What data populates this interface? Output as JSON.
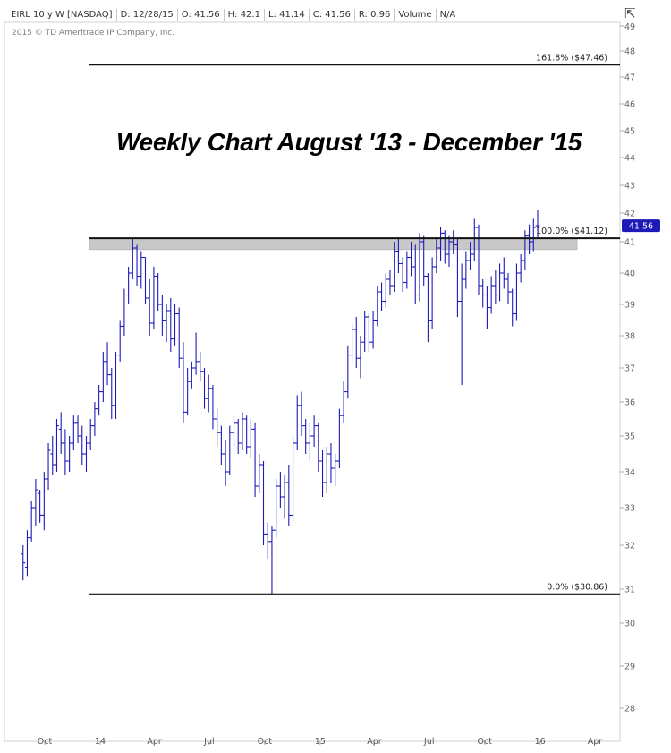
{
  "header": {
    "symbol": "EIRL 10 y W [NASDAQ]",
    "date": "D: 12/28/15",
    "open": "O: 41.56",
    "high": "H: 42.1",
    "low": "L: 41.14",
    "close": "C: 41.56",
    "range": "R: 0.96",
    "volume_label": "Volume",
    "volume_value": "N/A",
    "copyright": "2015 © TD Ameritrade IP Company, Inc.",
    "corner_icon": "compare-arrows-icon"
  },
  "chart_data": {
    "type": "ohlc",
    "title": "Weekly Chart August '13 - December '15",
    "y_ticks": [
      "28",
      "29",
      "30",
      "31",
      "32",
      "33",
      "34",
      "35",
      "36",
      "37",
      "38",
      "39",
      "40",
      "41",
      "42",
      "43",
      "44",
      "45",
      "46",
      "47",
      "48",
      "49"
    ],
    "ylim": [
      27.6,
      49.1
    ],
    "x_tick_labels": [
      "Oct",
      "14",
      "Apr",
      "Jul",
      "Oct",
      "15",
      "Apr",
      "Jul",
      "Oct",
      "16",
      "Apr"
    ],
    "x_tick_dates": [
      "2013-10-01",
      "2014-01-01",
      "2014-04-01",
      "2014-07-01",
      "2014-10-01",
      "2015-01-01",
      "2015-04-01",
      "2015-07-01",
      "2015-10-01",
      "2016-01-01",
      "2016-04-01"
    ],
    "last_price": "41.56",
    "fib_levels": [
      {
        "label": "161.8% ($47.46)",
        "value": 47.46
      },
      {
        "label": "100.0% ($41.12)",
        "value": 41.12
      },
      {
        "label": "0.0% ($30.86)",
        "value": 30.86
      }
    ],
    "resistance_zone": [
      40.75,
      41.12
    ],
    "series": [
      {
        "x": "2013-08-26",
        "open": 31.8,
        "high": 32.0,
        "low": 31.2,
        "close": 31.6
      },
      {
        "x": "2013-09-02",
        "open": 31.5,
        "high": 32.4,
        "low": 31.3,
        "close": 32.2
      },
      {
        "x": "2013-09-09",
        "open": 32.2,
        "high": 33.2,
        "low": 32.1,
        "close": 33.0
      },
      {
        "x": "2013-09-16",
        "open": 33.0,
        "high": 33.8,
        "low": 32.5,
        "close": 33.5
      },
      {
        "x": "2013-09-23",
        "open": 33.4,
        "high": 33.5,
        "low": 32.6,
        "close": 32.8
      },
      {
        "x": "2013-09-30",
        "open": 32.8,
        "high": 34.0,
        "low": 32.4,
        "close": 33.8
      },
      {
        "x": "2013-10-07",
        "open": 33.8,
        "high": 34.8,
        "low": 33.5,
        "close": 34.6
      },
      {
        "x": "2013-10-14",
        "open": 34.5,
        "high": 35.0,
        "low": 33.9,
        "close": 34.2
      },
      {
        "x": "2013-10-21",
        "open": 34.2,
        "high": 35.5,
        "low": 34.0,
        "close": 35.3
      },
      {
        "x": "2013-10-28",
        "open": 35.2,
        "high": 35.7,
        "low": 34.5,
        "close": 34.8
      },
      {
        "x": "2013-11-04",
        "open": 34.8,
        "high": 35.2,
        "low": 33.9,
        "close": 34.3
      },
      {
        "x": "2013-11-11",
        "open": 34.3,
        "high": 35.0,
        "low": 34.0,
        "close": 34.8
      },
      {
        "x": "2013-11-18",
        "open": 34.8,
        "high": 35.6,
        "low": 34.6,
        "close": 35.4
      },
      {
        "x": "2013-11-25",
        "open": 35.4,
        "high": 35.6,
        "low": 34.8,
        "close": 35.0
      },
      {
        "x": "2013-12-02",
        "open": 35.0,
        "high": 35.3,
        "low": 34.2,
        "close": 34.5
      },
      {
        "x": "2013-12-09",
        "open": 34.5,
        "high": 35.0,
        "low": 34.0,
        "close": 34.8
      },
      {
        "x": "2013-12-16",
        "open": 34.8,
        "high": 35.5,
        "low": 34.6,
        "close": 35.3
      },
      {
        "x": "2013-12-23",
        "open": 35.3,
        "high": 36.0,
        "low": 35.0,
        "close": 35.8
      },
      {
        "x": "2013-12-30",
        "open": 35.8,
        "high": 36.5,
        "low": 35.6,
        "close": 36.3
      },
      {
        "x": "2014-01-06",
        "open": 36.3,
        "high": 37.5,
        "low": 36.0,
        "close": 37.2
      },
      {
        "x": "2014-01-13",
        "open": 37.2,
        "high": 37.8,
        "low": 36.5,
        "close": 36.8
      },
      {
        "x": "2014-01-20",
        "open": 36.8,
        "high": 37.0,
        "low": 35.5,
        "close": 35.9
      },
      {
        "x": "2014-01-27",
        "open": 35.9,
        "high": 37.5,
        "low": 35.5,
        "close": 37.4
      },
      {
        "x": "2014-02-03",
        "open": 37.4,
        "high": 38.5,
        "low": 37.2,
        "close": 38.3
      },
      {
        "x": "2014-02-10",
        "open": 38.3,
        "high": 39.5,
        "low": 38.0,
        "close": 39.3
      },
      {
        "x": "2014-02-17",
        "open": 39.3,
        "high": 40.2,
        "low": 39.0,
        "close": 40.0
      },
      {
        "x": "2014-02-24",
        "open": 40.0,
        "high": 41.1,
        "low": 39.8,
        "close": 40.8
      },
      {
        "x": "2014-03-03",
        "open": 40.8,
        "high": 40.9,
        "low": 39.6,
        "close": 39.9
      },
      {
        "x": "2014-03-10",
        "open": 39.9,
        "high": 40.7,
        "low": 39.5,
        "close": 40.5
      },
      {
        "x": "2014-03-17",
        "open": 40.5,
        "high": 40.5,
        "low": 39.0,
        "close": 39.2
      },
      {
        "x": "2014-03-24",
        "open": 39.2,
        "high": 39.8,
        "low": 38.0,
        "close": 38.4
      },
      {
        "x": "2014-03-31",
        "open": 38.4,
        "high": 40.2,
        "low": 38.2,
        "close": 39.9
      },
      {
        "x": "2014-04-07",
        "open": 39.9,
        "high": 40.0,
        "low": 38.8,
        "close": 39.0
      },
      {
        "x": "2014-04-14",
        "open": 39.0,
        "high": 39.3,
        "low": 38.0,
        "close": 38.5
      },
      {
        "x": "2014-04-21",
        "open": 38.5,
        "high": 39.0,
        "low": 37.8,
        "close": 38.8
      },
      {
        "x": "2014-04-28",
        "open": 38.8,
        "high": 39.2,
        "low": 37.5,
        "close": 37.9
      },
      {
        "x": "2014-05-05",
        "open": 37.9,
        "high": 39.0,
        "low": 37.7,
        "close": 38.7
      },
      {
        "x": "2014-05-12",
        "open": 38.7,
        "high": 38.9,
        "low": 37.0,
        "close": 37.3
      },
      {
        "x": "2014-05-19",
        "open": 37.3,
        "high": 37.8,
        "low": 35.4,
        "close": 35.7
      },
      {
        "x": "2014-05-26",
        "open": 35.7,
        "high": 37.0,
        "low": 35.6,
        "close": 36.6
      },
      {
        "x": "2014-06-02",
        "open": 36.6,
        "high": 37.2,
        "low": 36.4,
        "close": 37.0
      },
      {
        "x": "2014-06-09",
        "open": 37.0,
        "high": 38.1,
        "low": 36.8,
        "close": 37.2
      },
      {
        "x": "2014-06-16",
        "open": 37.2,
        "high": 37.5,
        "low": 36.6,
        "close": 36.9
      },
      {
        "x": "2014-06-23",
        "open": 36.9,
        "high": 37.0,
        "low": 35.8,
        "close": 36.1
      },
      {
        "x": "2014-06-30",
        "open": 36.1,
        "high": 36.8,
        "low": 35.7,
        "close": 36.4
      },
      {
        "x": "2014-07-07",
        "open": 36.4,
        "high": 36.5,
        "low": 35.2,
        "close": 35.5
      },
      {
        "x": "2014-07-14",
        "open": 35.5,
        "high": 35.8,
        "low": 34.7,
        "close": 35.1
      },
      {
        "x": "2014-07-21",
        "open": 35.1,
        "high": 35.3,
        "low": 34.2,
        "close": 34.5
      },
      {
        "x": "2014-07-28",
        "open": 34.5,
        "high": 34.9,
        "low": 33.6,
        "close": 34.0
      },
      {
        "x": "2014-08-04",
        "open": 34.0,
        "high": 35.3,
        "low": 33.9,
        "close": 35.1
      },
      {
        "x": "2014-08-11",
        "open": 35.1,
        "high": 35.6,
        "low": 34.7,
        "close": 35.4
      },
      {
        "x": "2014-08-18",
        "open": 35.4,
        "high": 35.5,
        "low": 34.5,
        "close": 34.8
      },
      {
        "x": "2014-08-25",
        "open": 34.8,
        "high": 35.7,
        "low": 34.6,
        "close": 35.5
      },
      {
        "x": "2014-09-01",
        "open": 35.5,
        "high": 35.6,
        "low": 34.5,
        "close": 34.7
      },
      {
        "x": "2014-09-08",
        "open": 34.7,
        "high": 35.5,
        "low": 34.4,
        "close": 35.2
      },
      {
        "x": "2014-09-15",
        "open": 35.2,
        "high": 35.4,
        "low": 33.3,
        "close": 33.6
      },
      {
        "x": "2014-09-22",
        "open": 33.6,
        "high": 34.5,
        "low": 33.4,
        "close": 34.2
      },
      {
        "x": "2014-09-29",
        "open": 34.2,
        "high": 34.3,
        "low": 32.0,
        "close": 32.3
      },
      {
        "x": "2014-10-06",
        "open": 32.3,
        "high": 32.6,
        "low": 31.7,
        "close": 32.1
      },
      {
        "x": "2014-10-13",
        "open": 32.1,
        "high": 32.5,
        "low": 30.86,
        "close": 32.4
      },
      {
        "x": "2014-10-20",
        "open": 32.4,
        "high": 33.8,
        "low": 32.2,
        "close": 33.6
      },
      {
        "x": "2014-10-27",
        "open": 33.6,
        "high": 34.0,
        "low": 33.0,
        "close": 33.3
      },
      {
        "x": "2014-11-03",
        "open": 33.3,
        "high": 33.9,
        "low": 32.7,
        "close": 33.7
      },
      {
        "x": "2014-11-10",
        "open": 33.7,
        "high": 34.2,
        "low": 32.5,
        "close": 32.8
      },
      {
        "x": "2014-11-17",
        "open": 32.8,
        "high": 35.0,
        "low": 32.6,
        "close": 34.8
      },
      {
        "x": "2014-11-24",
        "open": 34.8,
        "high": 36.2,
        "low": 34.6,
        "close": 35.9
      },
      {
        "x": "2014-12-01",
        "open": 35.9,
        "high": 36.3,
        "low": 35.0,
        "close": 35.3
      },
      {
        "x": "2014-12-08",
        "open": 35.3,
        "high": 35.5,
        "low": 34.5,
        "close": 34.8
      },
      {
        "x": "2014-12-15",
        "open": 34.8,
        "high": 35.4,
        "low": 34.3,
        "close": 35.0
      },
      {
        "x": "2014-12-22",
        "open": 35.0,
        "high": 35.6,
        "low": 34.7,
        "close": 35.3
      },
      {
        "x": "2014-12-29",
        "open": 35.3,
        "high": 35.4,
        "low": 34.0,
        "close": 34.3
      },
      {
        "x": "2015-01-05",
        "open": 34.3,
        "high": 34.6,
        "low": 33.3,
        "close": 33.7
      },
      {
        "x": "2015-01-12",
        "open": 33.7,
        "high": 34.7,
        "low": 33.4,
        "close": 34.5
      },
      {
        "x": "2015-01-19",
        "open": 34.5,
        "high": 34.8,
        "low": 33.7,
        "close": 34.1
      },
      {
        "x": "2015-01-26",
        "open": 34.1,
        "high": 34.5,
        "low": 33.6,
        "close": 34.3
      },
      {
        "x": "2015-02-02",
        "open": 34.3,
        "high": 35.8,
        "low": 34.1,
        "close": 35.6
      },
      {
        "x": "2015-02-09",
        "open": 35.6,
        "high": 36.6,
        "low": 35.4,
        "close": 36.3
      },
      {
        "x": "2015-02-16",
        "open": 36.3,
        "high": 37.7,
        "low": 36.1,
        "close": 37.4
      },
      {
        "x": "2015-02-23",
        "open": 37.4,
        "high": 38.4,
        "low": 37.2,
        "close": 38.2
      },
      {
        "x": "2015-03-02",
        "open": 38.2,
        "high": 38.6,
        "low": 37.0,
        "close": 37.3
      },
      {
        "x": "2015-03-09",
        "open": 37.3,
        "high": 38.0,
        "low": 36.7,
        "close": 37.8
      },
      {
        "x": "2015-03-16",
        "open": 37.8,
        "high": 38.8,
        "low": 37.5,
        "close": 38.6
      },
      {
        "x": "2015-03-23",
        "open": 38.6,
        "high": 38.7,
        "low": 37.5,
        "close": 37.8
      },
      {
        "x": "2015-03-30",
        "open": 37.8,
        "high": 38.8,
        "low": 37.6,
        "close": 38.5
      },
      {
        "x": "2015-04-06",
        "open": 38.5,
        "high": 39.6,
        "low": 38.3,
        "close": 39.4
      },
      {
        "x": "2015-04-13",
        "open": 39.4,
        "high": 39.7,
        "low": 38.8,
        "close": 39.1
      },
      {
        "x": "2015-04-20",
        "open": 39.1,
        "high": 40.0,
        "low": 38.9,
        "close": 39.8
      },
      {
        "x": "2015-04-27",
        "open": 39.8,
        "high": 40.1,
        "low": 39.3,
        "close": 39.6
      },
      {
        "x": "2015-05-04",
        "open": 39.6,
        "high": 41.0,
        "low": 39.4,
        "close": 40.7
      },
      {
        "x": "2015-05-11",
        "open": 40.7,
        "high": 41.1,
        "low": 40.0,
        "close": 40.3
      },
      {
        "x": "2015-05-18",
        "open": 40.3,
        "high": 40.5,
        "low": 39.4,
        "close": 39.7
      },
      {
        "x": "2015-05-25",
        "open": 39.7,
        "high": 40.7,
        "low": 39.5,
        "close": 40.5
      },
      {
        "x": "2015-06-01",
        "open": 40.5,
        "high": 41.0,
        "low": 39.9,
        "close": 40.2
      },
      {
        "x": "2015-06-08",
        "open": 40.2,
        "high": 40.9,
        "low": 39.0,
        "close": 39.3
      },
      {
        "x": "2015-06-15",
        "open": 39.3,
        "high": 41.3,
        "low": 39.1,
        "close": 41.0
      },
      {
        "x": "2015-06-22",
        "open": 41.0,
        "high": 41.2,
        "low": 39.6,
        "close": 39.9
      },
      {
        "x": "2015-06-29",
        "open": 39.9,
        "high": 40.0,
        "low": 37.8,
        "close": 38.5
      },
      {
        "x": "2015-07-06",
        "open": 38.5,
        "high": 40.5,
        "low": 38.2,
        "close": 40.2
      },
      {
        "x": "2015-07-13",
        "open": 40.2,
        "high": 41.1,
        "low": 40.0,
        "close": 40.8
      },
      {
        "x": "2015-07-20",
        "open": 40.8,
        "high": 41.5,
        "low": 40.4,
        "close": 41.3
      },
      {
        "x": "2015-07-27",
        "open": 41.3,
        "high": 41.4,
        "low": 40.3,
        "close": 40.6
      },
      {
        "x": "2015-08-03",
        "open": 40.6,
        "high": 41.2,
        "low": 40.2,
        "close": 41.0
      },
      {
        "x": "2015-08-10",
        "open": 41.0,
        "high": 41.4,
        "low": 40.6,
        "close": 40.9
      },
      {
        "x": "2015-08-17",
        "open": 40.9,
        "high": 41.1,
        "low": 38.6,
        "close": 39.1
      },
      {
        "x": "2015-08-24",
        "open": 39.1,
        "high": 40.3,
        "low": 36.5,
        "close": 39.8
      },
      {
        "x": "2015-08-31",
        "open": 39.8,
        "high": 40.7,
        "low": 39.5,
        "close": 40.4
      },
      {
        "x": "2015-09-07",
        "open": 40.4,
        "high": 41.0,
        "low": 40.1,
        "close": 40.6
      },
      {
        "x": "2015-09-14",
        "open": 40.6,
        "high": 41.8,
        "low": 40.4,
        "close": 41.5
      },
      {
        "x": "2015-09-21",
        "open": 41.5,
        "high": 41.6,
        "low": 39.3,
        "close": 39.6
      },
      {
        "x": "2015-09-28",
        "open": 39.6,
        "high": 39.8,
        "low": 38.9,
        "close": 39.3
      },
      {
        "x": "2015-10-05",
        "open": 39.3,
        "high": 39.6,
        "low": 38.2,
        "close": 38.9
      },
      {
        "x": "2015-10-12",
        "open": 38.9,
        "high": 39.9,
        "low": 38.7,
        "close": 39.6
      },
      {
        "x": "2015-10-19",
        "open": 39.6,
        "high": 40.1,
        "low": 39.0,
        "close": 39.3
      },
      {
        "x": "2015-10-26",
        "open": 39.3,
        "high": 40.3,
        "low": 39.1,
        "close": 40.0
      },
      {
        "x": "2015-11-02",
        "open": 40.0,
        "high": 40.5,
        "low": 39.5,
        "close": 39.8
      },
      {
        "x": "2015-11-09",
        "open": 39.8,
        "high": 40.0,
        "low": 39.0,
        "close": 39.4
      },
      {
        "x": "2015-11-16",
        "open": 39.4,
        "high": 39.5,
        "low": 38.3,
        "close": 38.7
      },
      {
        "x": "2015-11-23",
        "open": 38.7,
        "high": 40.3,
        "low": 38.5,
        "close": 40.0
      },
      {
        "x": "2015-11-30",
        "open": 40.0,
        "high": 40.6,
        "low": 39.7,
        "close": 40.4
      },
      {
        "x": "2015-12-07",
        "open": 40.4,
        "high": 41.4,
        "low": 40.1,
        "close": 41.2
      },
      {
        "x": "2015-12-14",
        "open": 41.2,
        "high": 41.6,
        "low": 40.6,
        "close": 41.0
      },
      {
        "x": "2015-12-21",
        "open": 41.0,
        "high": 41.8,
        "low": 40.7,
        "close": 41.5
      },
      {
        "x": "2015-12-28",
        "open": 41.56,
        "high": 42.1,
        "low": 41.14,
        "close": 41.56
      }
    ]
  }
}
